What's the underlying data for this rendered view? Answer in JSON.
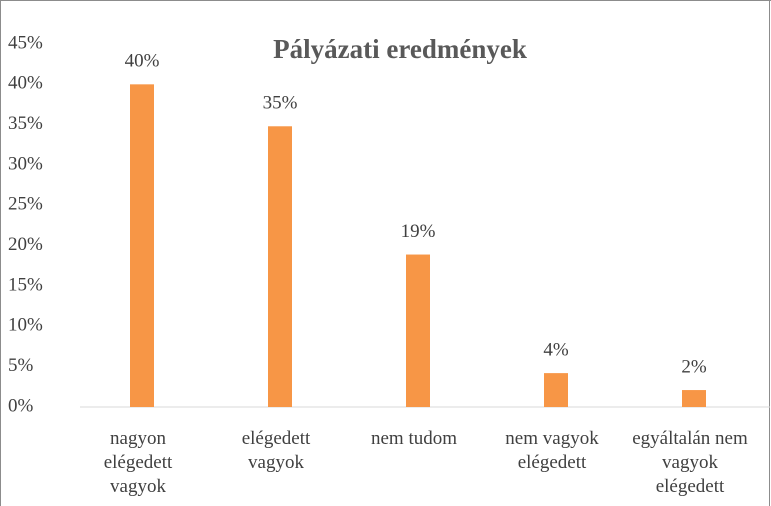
{
  "chart_data": {
    "type": "bar",
    "title": "Pályázati eredmények",
    "categories": [
      "nagyon elégedett vagyok",
      "elégedett vagyok",
      "nem tudom",
      "nem vagyok elégedett",
      "egyáltalán nem vagyok elégedett"
    ],
    "values": [
      40,
      34.8,
      18.9,
      4.2,
      2.1
    ],
    "value_labels": [
      "40%",
      "35%",
      "19%",
      "4%",
      "2%"
    ],
    "color": "#f79646",
    "ylim": [
      0,
      45
    ],
    "yticks": [
      {
        "value": 0,
        "label": "0%"
      },
      {
        "value": 5,
        "label": "5%"
      },
      {
        "value": 10,
        "label": "10%"
      },
      {
        "value": 15,
        "label": "15%"
      },
      {
        "value": 20,
        "label": "20%"
      },
      {
        "value": 25,
        "label": "25%"
      },
      {
        "value": 30,
        "label": "30%"
      },
      {
        "value": 35,
        "label": "35%"
      },
      {
        "value": 40,
        "label": "40%"
      },
      {
        "value": 45,
        "label": "45%"
      }
    ],
    "grid": false
  }
}
